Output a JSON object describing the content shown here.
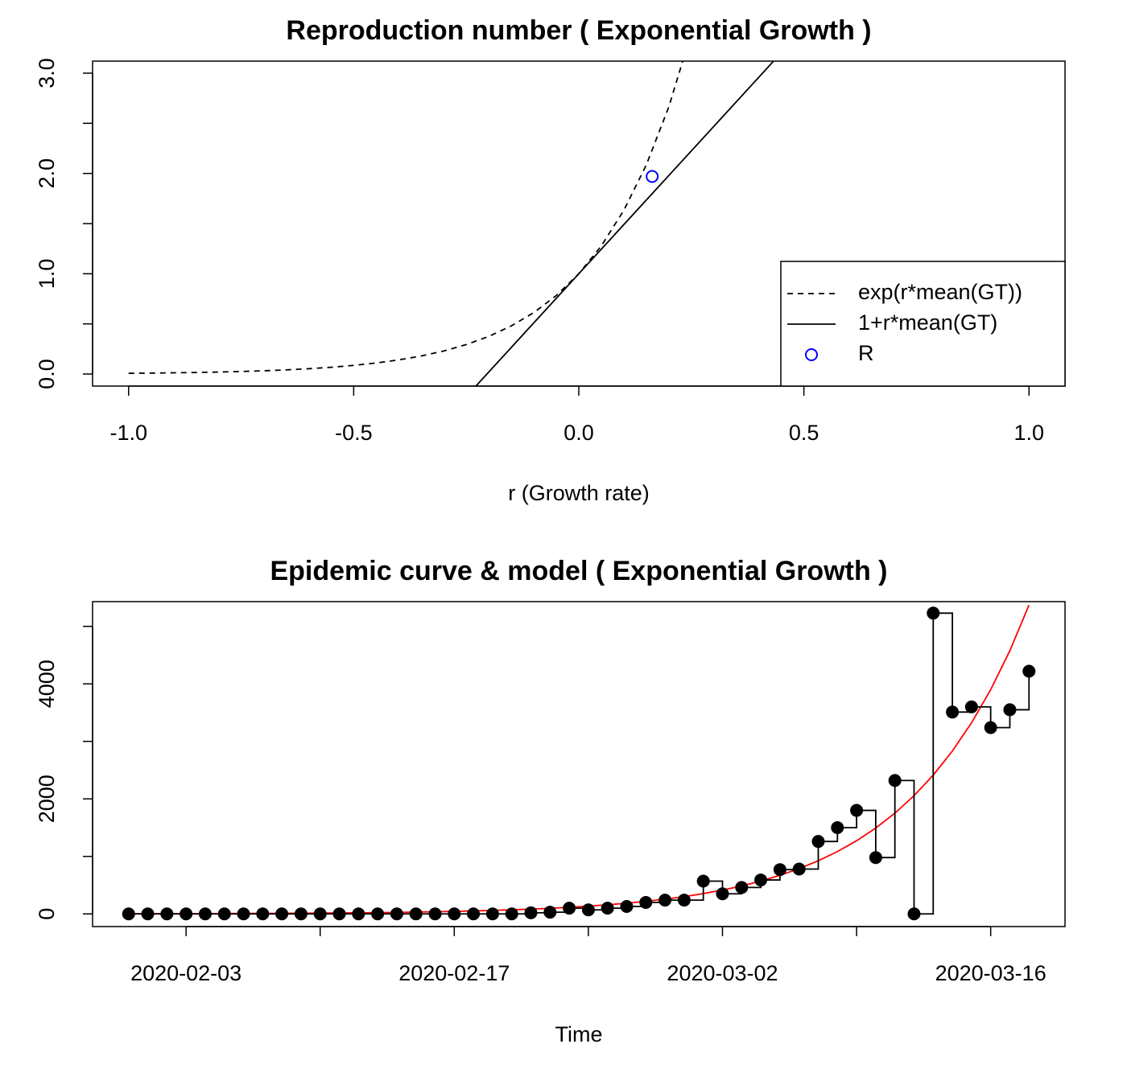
{
  "chart_data": [
    {
      "type": "line",
      "title": "Reproduction number ( Exponential Growth )",
      "x_label": "r (Growth rate)",
      "xlim": [
        -1.08,
        1.08
      ],
      "ylim": [
        -0.12,
        3.12
      ],
      "xticks": [
        {
          "value": -1,
          "label": "-1.0"
        },
        {
          "value": -0.5,
          "label": "-0.5"
        },
        {
          "value": 0,
          "label": "0.0"
        },
        {
          "value": 0.5,
          "label": "0.5"
        },
        {
          "value": 1,
          "label": "1.0"
        }
      ],
      "yticks": [
        {
          "value": 0,
          "label": "0.0"
        },
        {
          "value": 1,
          "label": "1.0"
        },
        {
          "value": 2,
          "label": "2.0"
        },
        {
          "value": 3,
          "label": "3.0"
        }
      ],
      "yminor_ticks": [
        0.5,
        1.5,
        2.5
      ],
      "legend": "bottomright",
      "series": [
        {
          "name": "exp(r*mean(GT))",
          "color": "#000000",
          "style": "dashed",
          "x": [
            -1,
            -0.95,
            -0.9,
            -0.85,
            -0.8,
            -0.75,
            -0.7,
            -0.65,
            -0.6,
            -0.55,
            -0.5,
            -0.45,
            -0.4,
            -0.35,
            -0.3,
            -0.25,
            -0.2,
            -0.15,
            -0.1,
            -0.05,
            0,
            0.05,
            0.1,
            0.15,
            0.2,
            0.25
          ],
          "values": [
            0.0074,
            0.0095,
            0.0122,
            0.0155,
            0.0198,
            0.0253,
            0.0324,
            0.0414,
            0.0529,
            0.0675,
            0.0863,
            0.1103,
            0.1409,
            0.18,
            0.2299,
            0.2938,
            0.3753,
            0.4795,
            0.6126,
            0.7827,
            1,
            1.2776,
            1.6323,
            2.0855,
            2.6645,
            3.404
          ]
        },
        {
          "name": "1+r*mean(GT)",
          "color": "#000000",
          "style": "solid",
          "x": [
            -0.25,
            0.45
          ],
          "values": [
            -0.225,
            3.205
          ]
        },
        {
          "name": "R",
          "color": "#0000ff",
          "style": "open-circle",
          "x": [
            0.163
          ],
          "values": [
            1.97
          ]
        }
      ]
    },
    {
      "type": "line",
      "title": "Epidemic curve & model ( Exponential Growth )",
      "x_label": "Time",
      "ylim": [
        -220,
        5430
      ],
      "xticks": [
        "2020-02-03",
        "2020-02-17",
        "2020-03-02",
        "2020-03-16"
      ],
      "xminor_ticks": [
        "2020-02-10",
        "2020-02-24",
        "2020-03-09"
      ],
      "yticks": [
        0,
        2000,
        4000
      ],
      "yminor_ticks": [
        1000,
        3000,
        5000
      ],
      "x": [
        "2020-01-31",
        "2020-02-01",
        "2020-02-02",
        "2020-02-03",
        "2020-02-04",
        "2020-02-05",
        "2020-02-06",
        "2020-02-07",
        "2020-02-08",
        "2020-02-09",
        "2020-02-10",
        "2020-02-11",
        "2020-02-12",
        "2020-02-13",
        "2020-02-14",
        "2020-02-15",
        "2020-02-16",
        "2020-02-17",
        "2020-02-18",
        "2020-02-19",
        "2020-02-20",
        "2020-02-21",
        "2020-02-22",
        "2020-02-23",
        "2020-02-24",
        "2020-02-25",
        "2020-02-26",
        "2020-02-27",
        "2020-02-28",
        "2020-02-29",
        "2020-03-01",
        "2020-03-02",
        "2020-03-03",
        "2020-03-04",
        "2020-03-05",
        "2020-03-06",
        "2020-03-07",
        "2020-03-08",
        "2020-03-09",
        "2020-03-10",
        "2020-03-11",
        "2020-03-12",
        "2020-03-13",
        "2020-03-14",
        "2020-03-15",
        "2020-03-16",
        "2020-03-17",
        "2020-03-18"
      ],
      "series": [
        {
          "color": "#ff0000",
          "style": "line",
          "values": [
            3,
            3,
            4,
            5,
            6,
            7,
            8,
            9,
            11,
            12,
            14,
            17,
            20,
            23,
            27,
            32,
            38,
            44,
            52,
            61,
            71,
            84,
            98,
            115,
            135,
            159,
            186,
            219,
            257,
            301,
            354,
            415,
            487,
            572,
            671,
            787,
            924,
            1084,
            1272,
            1493,
            1752,
            2056,
            2413,
            2832,
            3323,
            3899,
            4576,
            5370
          ]
        },
        {
          "color": "#000000",
          "style": "step-points",
          "values": [
            0,
            0,
            0,
            0,
            0,
            0,
            0,
            0,
            0,
            0,
            0,
            0,
            0,
            0,
            0,
            0,
            0,
            0,
            0,
            0,
            0,
            20,
            30,
            100,
            70,
            100,
            130,
            200,
            240,
            240,
            570,
            350,
            460,
            590,
            770,
            780,
            1260,
            1500,
            1800,
            980,
            2320,
            0,
            5230,
            3510,
            3600,
            3240,
            3550,
            4220
          ]
        }
      ]
    }
  ]
}
